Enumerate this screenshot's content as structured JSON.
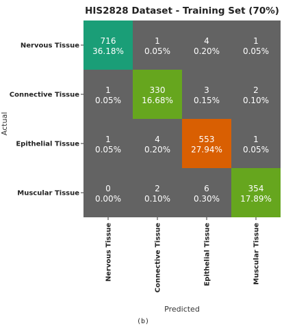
{
  "chart_data": {
    "type": "heatmap",
    "title": "HIS2828 Dataset - Training Set (70%)",
    "xlabel": "Predicted",
    "ylabel": "Actual",
    "row_labels": [
      "Nervous Tissue",
      "Connective Tissue",
      "Epithelial Tissue",
      "Muscular Tissue"
    ],
    "col_labels": [
      "Nervous Tissue",
      "Connective Tissue",
      "Epithelial Tissue",
      "Muscular Tissue"
    ],
    "counts": [
      [
        716,
        1,
        4,
        1
      ],
      [
        1,
        330,
        3,
        2
      ],
      [
        1,
        4,
        553,
        1
      ],
      [
        0,
        2,
        6,
        354
      ]
    ],
    "percentages": [
      [
        "36.18%",
        "0.05%",
        "0.20%",
        "0.05%"
      ],
      [
        "0.05%",
        "16.68%",
        "0.15%",
        "0.10%"
      ],
      [
        "0.05%",
        "0.20%",
        "27.94%",
        "0.05%"
      ],
      [
        "0.00%",
        "0.10%",
        "0.30%",
        "17.89%"
      ]
    ],
    "colors": {
      "background": "#636363",
      "diagonal": [
        "#1a9e77",
        "#66a61e",
        "#d95f02",
        "#66a61e"
      ]
    }
  },
  "caption": "(b)"
}
